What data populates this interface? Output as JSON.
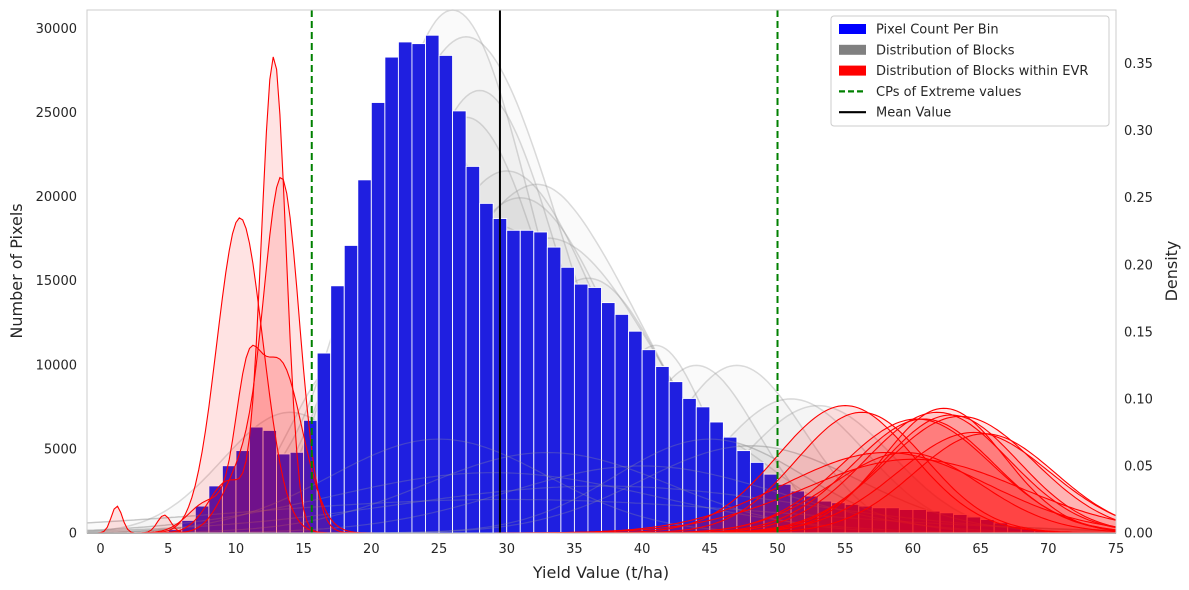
{
  "chart_data": {
    "type": "bar",
    "xlabel": "Yield Value (t/ha)",
    "ylabel": "Number of Pixels",
    "y2label": "Density",
    "xlim": [
      -1,
      75
    ],
    "ylim": [
      0,
      31100
    ],
    "y2lim": [
      0,
      0.39
    ],
    "xticks": [
      0,
      5,
      10,
      15,
      20,
      25,
      30,
      35,
      40,
      45,
      50,
      55,
      60,
      65,
      70,
      75
    ],
    "yticks": [
      0,
      5000,
      10000,
      15000,
      20000,
      25000,
      30000
    ],
    "y2ticks": [
      0.0,
      0.05,
      0.1,
      0.15,
      0.2,
      0.25,
      0.3,
      0.35
    ],
    "y2tick_labels": [
      "0.00",
      "0.05",
      "0.10",
      "0.15",
      "0.20",
      "0.25",
      "0.30",
      "0.35"
    ],
    "grid": false,
    "legend_position": "top-right",
    "legend": [
      {
        "label": "Pixel Count Per Bin",
        "kind": "patch",
        "color": "#0000ff"
      },
      {
        "label": "Distribution of Blocks",
        "kind": "patch",
        "color": "#808080"
      },
      {
        "label": "Distribution of Blocks within EVR",
        "kind": "patch",
        "color": "#ff0000"
      },
      {
        "label": "CPs of Extreme values",
        "kind": "dashed",
        "color": "#008000"
      },
      {
        "label": "Mean Value",
        "kind": "line",
        "color": "#000000"
      }
    ],
    "bin_width": 1,
    "bins_x": [
      0,
      1,
      2,
      3,
      4,
      5,
      6,
      7,
      8,
      9,
      10,
      11,
      12,
      13,
      14,
      15,
      16,
      17,
      18,
      19,
      20,
      21,
      22,
      23,
      24,
      25,
      26,
      27,
      28,
      29,
      30,
      31,
      32,
      33,
      34,
      35,
      36,
      37,
      38,
      39,
      40,
      41,
      42,
      43,
      44,
      45,
      46,
      47,
      48,
      49,
      50,
      51,
      52,
      53,
      54,
      55,
      56,
      57,
      58,
      59,
      60,
      61,
      62,
      63,
      64,
      65,
      66,
      67,
      68,
      69,
      70,
      71,
      72,
      73,
      74
    ],
    "bins_count": [
      5,
      10,
      20,
      40,
      80,
      200,
      750,
      1600,
      2800,
      4000,
      4900,
      6300,
      6100,
      4700,
      4800,
      6700,
      10700,
      14700,
      17100,
      21000,
      25600,
      28300,
      29200,
      29100,
      29600,
      28400,
      25100,
      21800,
      19600,
      18700,
      18000,
      18000,
      17900,
      17000,
      15800,
      14800,
      14600,
      13700,
      13000,
      12000,
      10900,
      9900,
      9000,
      8000,
      7500,
      6600,
      5700,
      4900,
      4200,
      3500,
      2900,
      2500,
      2200,
      1900,
      1800,
      1700,
      1600,
      1500,
      1500,
      1400,
      1400,
      1300,
      1200,
      1100,
      950,
      800,
      600,
      400,
      250,
      150,
      80,
      40,
      20,
      10,
      5
    ],
    "mean_value": 29.5,
    "cp_values": [
      15.6,
      50.0
    ],
    "colors": {
      "bars": "#1f1fe0",
      "gray_density": "#999999",
      "evr_density": "#ff0000",
      "cp_line": "#008000",
      "mean_line": "#000000"
    },
    "block_densities": [
      {
        "group": "gray",
        "mixture": [
          [
            0.04,
            19.2,
            1.2
          ],
          [
            0.96,
            26,
            6
          ]
        ]
      },
      {
        "group": "gray",
        "mixture": [
          [
            0.035,
            17.8,
            1.3
          ],
          [
            0.97,
            27,
            7
          ]
        ]
      },
      {
        "group": "gray",
        "mixture": [
          [
            0.035,
            18.6,
            1.4
          ],
          [
            0.965,
            24,
            5
          ]
        ]
      },
      {
        "group": "gray",
        "mixture": [
          [
            0.03,
            19.2,
            1.5
          ],
          [
            0.97,
            28,
            6
          ]
        ]
      },
      {
        "group": "gray",
        "mixture": [
          [
            0.035,
            20.3,
            1.4
          ],
          [
            0.965,
            27,
            6
          ]
        ]
      },
      {
        "group": "gray",
        "mixture": [
          [
            0.025,
            21,
            1.5
          ],
          [
            0.975,
            30,
            7
          ]
        ]
      },
      {
        "group": "gray",
        "mixture": [
          [
            0.02,
            33,
            2.0
          ],
          [
            0.98,
            32,
            8
          ]
        ]
      },
      {
        "group": "gray",
        "mixture": [
          [
            0.022,
            20,
            1.8
          ],
          [
            0.978,
            31,
            7
          ]
        ]
      },
      {
        "group": "gray",
        "mixture": [
          [
            0.02,
            24,
            2.0
          ],
          [
            0.98,
            29,
            8
          ]
        ]
      },
      {
        "group": "gray",
        "mixture": [
          [
            0.015,
            23.5,
            2.5
          ],
          [
            0.985,
            33,
            8
          ]
        ]
      },
      {
        "group": "gray",
        "mixture": [
          [
            0.018,
            26,
            2.2
          ],
          [
            0.982,
            36,
            6
          ]
        ]
      },
      {
        "group": "gray",
        "mixture": [
          [
            1.0,
            28,
            3.5
          ]
        ]
      },
      {
        "group": "gray",
        "mixture": [
          [
            1.0,
            31,
            3.8
          ]
        ]
      },
      {
        "group": "gray",
        "mixture": [
          [
            1.0,
            34,
            4.2
          ]
        ]
      },
      {
        "group": "gray",
        "mixture": [
          [
            1.0,
            37,
            4.0
          ]
        ]
      },
      {
        "group": "gray",
        "mixture": [
          [
            1.0,
            41,
            3.8
          ]
        ]
      },
      {
        "group": "gray",
        "mixture": [
          [
            1.0,
            44,
            4.5
          ]
        ]
      },
      {
        "group": "gray",
        "mixture": [
          [
            1.0,
            47,
            5.0
          ]
        ]
      },
      {
        "group": "gray",
        "mixture": [
          [
            1.0,
            51,
            5.5
          ]
        ]
      },
      {
        "group": "gray",
        "mixture": [
          [
            1.0,
            53,
            5.5
          ]
        ]
      },
      {
        "group": "gray",
        "mixture": [
          [
            1.0,
            26,
            5.0
          ]
        ]
      },
      {
        "group": "gray",
        "mixture": [
          [
            1.0,
            30,
            5.5
          ]
        ]
      },
      {
        "group": "gray",
        "mixture": [
          [
            1.0,
            35,
            6.0
          ]
        ]
      },
      {
        "group": "gray",
        "mixture": [
          [
            1.0,
            39,
            6.0
          ]
        ]
      },
      {
        "group": "gray",
        "mixture": [
          [
            1.0,
            43,
            6.5
          ]
        ]
      },
      {
        "group": "gray",
        "mixture": [
          [
            1.0,
            22,
            4.5
          ]
        ]
      },
      {
        "group": "gray",
        "mixture": [
          [
            1.0,
            18,
            4.0
          ]
        ]
      },
      {
        "group": "gray",
        "mixture": [
          [
            1.0,
            14,
            5.0
          ]
        ]
      },
      {
        "group": "gray",
        "mixture": [
          [
            1.0,
            45,
            7.0
          ]
        ]
      },
      {
        "group": "gray",
        "mixture": [
          [
            1.0,
            33,
            9.0
          ]
        ]
      },
      {
        "group": "gray",
        "mixture": [
          [
            1.0,
            25,
            8.0
          ]
        ]
      },
      {
        "group": "gray",
        "mixture": [
          [
            1.0,
            48,
            8.0
          ]
        ]
      },
      {
        "group": "gray",
        "mixture": [
          [
            1.0,
            40,
            10.0
          ]
        ]
      },
      {
        "group": "gray",
        "mixture": [
          [
            1.0,
            29,
            12.0
          ]
        ]
      },
      {
        "group": "gray",
        "mixture": [
          [
            1.0,
            37,
            15.0
          ]
        ]
      },
      {
        "group": "gray",
        "mixture": [
          [
            1.0,
            30,
            20.0
          ]
        ]
      },
      {
        "group": "red-low",
        "mixture": [
          [
            1.0,
            10.3,
            1.7
          ]
        ]
      },
      {
        "group": "red-low",
        "mixture": [
          [
            0.9,
            12.8,
            0.9
          ],
          [
            0.1,
            9.5,
            1.5
          ]
        ]
      },
      {
        "group": "red-low",
        "mixture": [
          [
            0.85,
            13.4,
            1.3
          ],
          [
            0.15,
            10.5,
            1.5
          ]
        ]
      },
      {
        "group": "red-low",
        "mixture": [
          [
            0.35,
            10.8,
            0.9
          ],
          [
            0.55,
            13.2,
            1.7
          ],
          [
            0.1,
            8,
            1.5
          ]
        ]
      },
      {
        "group": "red-low",
        "mixture": [
          [
            0.6,
            1.2,
            0.4
          ],
          [
            0.4,
            4.7,
            0.5
          ]
        ]
      },
      {
        "group": "red-high",
        "mixture": [
          [
            1.0,
            55,
            5.0
          ]
        ]
      },
      {
        "group": "red-high",
        "mixture": [
          [
            1.0,
            56.2,
            4.8
          ]
        ]
      },
      {
        "group": "red-high",
        "mixture": [
          [
            1.0,
            59.5,
            5.5
          ]
        ]
      },
      {
        "group": "red-high",
        "mixture": [
          [
            1.0,
            60.3,
            5.5
          ]
        ]
      },
      {
        "group": "red-high",
        "mixture": [
          [
            1.0,
            60.8,
            5.2
          ]
        ]
      },
      {
        "group": "red-high",
        "mixture": [
          [
            1.0,
            61.8,
            5.3
          ]
        ]
      },
      {
        "group": "red-high",
        "mixture": [
          [
            1.0,
            62.3,
            4.5
          ]
        ]
      },
      {
        "group": "red-high",
        "mixture": [
          [
            1.0,
            62.8,
            5.0
          ]
        ]
      },
      {
        "group": "red-high",
        "mixture": [
          [
            1.0,
            63.5,
            5.5
          ]
        ]
      },
      {
        "group": "red-high",
        "mixture": [
          [
            1.0,
            64.5,
            5.6
          ]
        ]
      },
      {
        "group": "red-high",
        "mixture": [
          [
            1.0,
            65.3,
            5.2
          ]
        ]
      },
      {
        "group": "red-high",
        "mixture": [
          [
            1.0,
            58.0,
            7.5
          ]
        ]
      },
      {
        "group": "red-high",
        "mixture": [
          [
            1.0,
            60.0,
            8.0
          ]
        ]
      }
    ],
    "block_peaks": [
      0.39,
      0.37,
      0.33,
      0.33,
      0.31,
      0.27,
      0.26,
      0.25,
      0.23,
      0.22,
      0.19,
      0.16,
      0.15,
      0.14,
      0.145,
      0.14,
      0.125,
      0.125,
      0.1,
      0.095,
      0.11,
      0.1,
      0.085,
      0.095,
      0.08,
      0.12,
      0.13,
      0.09,
      0.07,
      0.06,
      0.07,
      0.065,
      0.05,
      0.045,
      0.035,
      0.025,
      0.235,
      0.355,
      0.265,
      0.14,
      0.02,
      0.095,
      0.09,
      0.06,
      0.085,
      0.085,
      0.09,
      0.093,
      0.088,
      0.087,
      0.075,
      0.074,
      0.06,
      0.055
    ]
  }
}
